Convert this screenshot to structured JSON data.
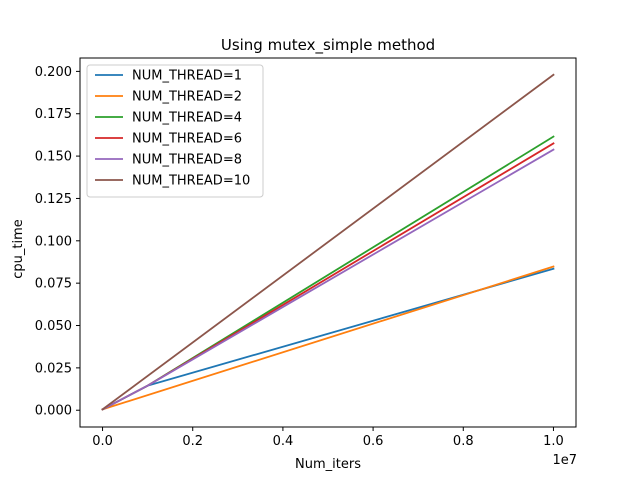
{
  "chart_data": {
    "type": "line",
    "title": "Using mutex_simple method",
    "xlabel": "Num_iters",
    "ylabel": "cpu_time",
    "x_offset_label": "1e7",
    "xlim": [
      -500000,
      10500000
    ],
    "ylim": [
      -0.0099,
      0.2079
    ],
    "x_ticks": [
      0,
      2000000,
      4000000,
      6000000,
      8000000,
      10000000
    ],
    "x_tick_labels": [
      "0.0",
      "0.2",
      "0.4",
      "0.6",
      "0.8",
      "1.0"
    ],
    "y_ticks": [
      0.0,
      0.025,
      0.05,
      0.075,
      0.1,
      0.125,
      0.15,
      0.175,
      0.2
    ],
    "y_tick_labels": [
      "0.000",
      "0.025",
      "0.050",
      "0.075",
      "0.100",
      "0.125",
      "0.150",
      "0.175",
      "0.200"
    ],
    "grid": false,
    "legend_position": "top-left",
    "series": [
      {
        "name": "NUM_THREAD=1",
        "color": "#1f77b4",
        "x": [
          0,
          1000000,
          10000000
        ],
        "y": [
          0.0005,
          0.0145,
          0.0835
        ]
      },
      {
        "name": "NUM_THREAD=2",
        "color": "#ff7f0e",
        "x": [
          0,
          10000000
        ],
        "y": [
          0.0005,
          0.0848
        ]
      },
      {
        "name": "NUM_THREAD=4",
        "color": "#2ca02c",
        "x": [
          0,
          1000000,
          10000000
        ],
        "y": [
          0.0005,
          0.0145,
          0.1615
        ]
      },
      {
        "name": "NUM_THREAD=6",
        "color": "#d62728",
        "x": [
          0,
          1000000,
          10000000
        ],
        "y": [
          0.0005,
          0.0145,
          0.1575
        ]
      },
      {
        "name": "NUM_THREAD=8",
        "color": "#9467bd",
        "x": [
          0,
          1000000,
          10000000
        ],
        "y": [
          0.0005,
          0.0145,
          0.1538
        ]
      },
      {
        "name": "NUM_THREAD=10",
        "color": "#8c564b",
        "x": [
          0,
          10000000
        ],
        "y": [
          0.0005,
          0.198
        ]
      }
    ]
  }
}
